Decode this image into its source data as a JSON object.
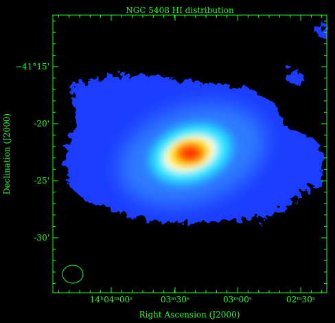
{
  "figure": {
    "title": "NGC 5408   HI distribution",
    "x_label": "Right Ascension (J2000)",
    "y_label": "Declination (J2000)",
    "x_tick_labels": [
      "14ʰ04ᵐ00ˢ",
      "03ᵐ30ˢ",
      "03ᵐ00ˢ",
      "02ᵐ30ˢ"
    ],
    "y_tick_labels": [
      "−41°15'",
      "-20'",
      "-25'",
      "-30'"
    ]
  }
}
